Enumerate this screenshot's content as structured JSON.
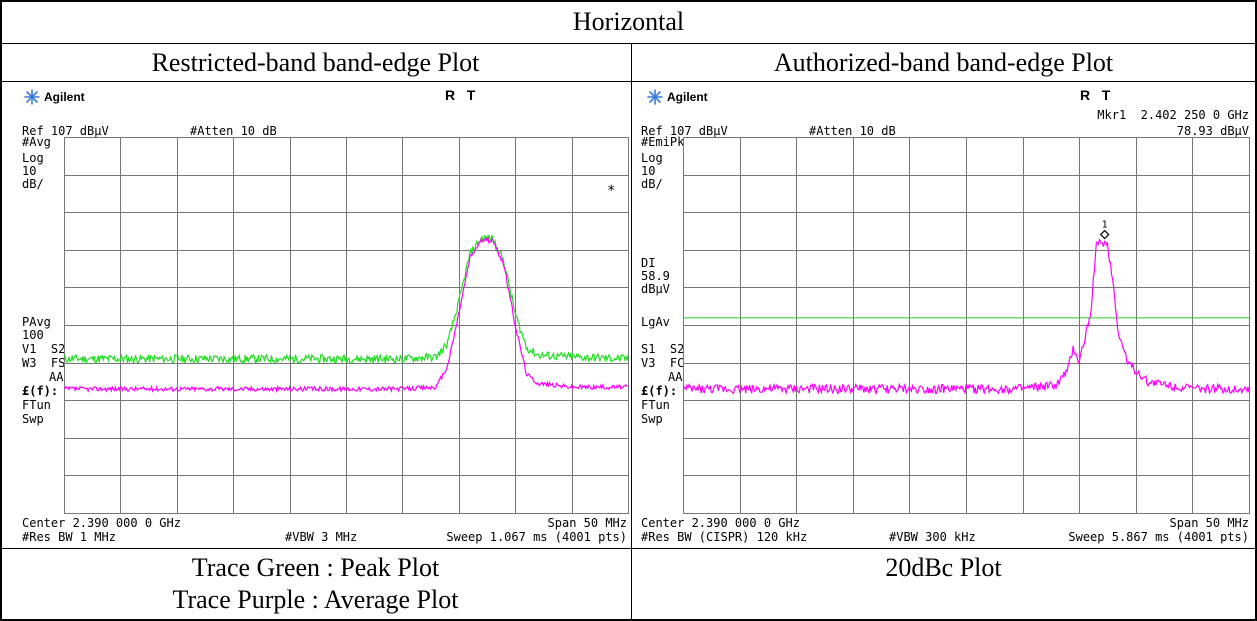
{
  "table": {
    "title": "Horizontal",
    "left_heading": "Restricted-band band-edge Plot",
    "right_heading": "Authorized-band band-edge Plot",
    "left_caption_1": "Trace Green : Peak Plot",
    "left_caption_2": "Trace Purple : Average Plot",
    "right_caption": "20dBc Plot"
  },
  "colors": {
    "peak_trace": "#22dd22",
    "average_trace": "#ff00ff",
    "display_line": "#22cc22",
    "logo_star": "#3a7bd5"
  },
  "left_plot": {
    "brand": "Agilent",
    "brand_icon": "agilent-star-icon",
    "rt": "R   T",
    "ref": "Ref 107 dBµV",
    "atten": "#Atten 10 dB",
    "mode": "#Avg",
    "scale": [
      "Log",
      "10",
      "dB/"
    ],
    "mid_labels": [
      "PAvg",
      "100",
      "V1  S2",
      "W3  FS",
      "AA",
      "£(f):",
      "FTun",
      "Swp"
    ],
    "star": "*",
    "center": "Center 2.390 000 0 GHz",
    "span": "Span 50 MHz",
    "res_bw": "#Res BW 1 MHz",
    "vbw": "#VBW 3 MHz",
    "sweep": "Sweep 1.067 ms (4001 pts)"
  },
  "right_plot": {
    "brand": "Agilent",
    "brand_icon": "agilent-star-icon",
    "rt": "R   T",
    "marker": "Mkr1  2.402 250 0 GHz",
    "marker_level": "78.93 dBµV",
    "marker_id": "1",
    "ref": "Ref 107 dBµV",
    "atten": "#Atten 10 dB",
    "mode": "#EmiPk",
    "scale": [
      "Log",
      "10",
      "dB/"
    ],
    "dl_labels": [
      "DI",
      "58.9",
      "dBµV"
    ],
    "lgav": "LgAv",
    "mid_labels": [
      "S1  S2",
      "V3  FC",
      "AA",
      "£(f):",
      "FTun",
      "Swp"
    ],
    "center": "Center 2.390 000 0 GHz",
    "span": "Span 50 MHz",
    "res_bw": "#Res BW (CISPR) 120 kHz",
    "vbw": "#VBW 300 kHz",
    "sweep": "Sweep 5.867 ms (4001 pts)"
  },
  "chart_data": [
    {
      "type": "line",
      "x_unit": "GHz",
      "y_unit": "dBµV",
      "xlim": [
        2.365,
        2.415
      ],
      "ylim": [
        7,
        107
      ],
      "grid": true,
      "series": [
        {
          "x": [
            2.365,
            2.37,
            2.375,
            2.38,
            2.385,
            2.39,
            2.395,
            2.398,
            2.399,
            2.4,
            2.401,
            2.402,
            2.403,
            2.404,
            2.405,
            2.406,
            2.407,
            2.41,
            2.415
          ],
          "values": [
            48,
            48,
            48,
            48,
            48,
            48,
            48,
            48.5,
            52,
            63,
            76,
            80,
            80,
            74,
            60,
            51,
            49,
            48.5,
            48
          ]
        },
        {
          "x": [
            2.365,
            2.37,
            2.375,
            2.38,
            2.385,
            2.39,
            2.395,
            2.398,
            2.399,
            2.4,
            2.401,
            2.402,
            2.403,
            2.404,
            2.405,
            2.406,
            2.407,
            2.41,
            2.415
          ],
          "values": [
            40,
            40,
            40,
            40,
            40,
            40,
            40,
            40.5,
            46,
            60,
            75,
            79.5,
            79.5,
            73,
            57,
            44,
            41.5,
            40.5,
            40.5
          ]
        }
      ]
    },
    {
      "type": "line",
      "x_unit": "GHz",
      "y_unit": "dBµV",
      "xlim": [
        2.365,
        2.415
      ],
      "ylim": [
        7,
        107
      ],
      "grid": true,
      "display_line": 58.9,
      "marker": {
        "x": 2.40225,
        "y": 78.93
      },
      "series": [
        {
          "x": [
            2.365,
            2.37,
            2.375,
            2.38,
            2.385,
            2.39,
            2.395,
            2.398,
            2.399,
            2.3995,
            2.4,
            2.401,
            2.4015,
            2.402,
            2.4025,
            2.403,
            2.4035,
            2.404,
            2.4045,
            2.405,
            2.406,
            2.41,
            2.415
          ],
          "values": [
            40,
            40,
            40,
            40,
            40,
            40,
            40,
            41,
            45,
            51,
            47,
            60,
            78,
            79,
            78.5,
            68,
            54,
            50,
            46,
            45,
            42,
            40,
            40
          ]
        }
      ]
    }
  ]
}
